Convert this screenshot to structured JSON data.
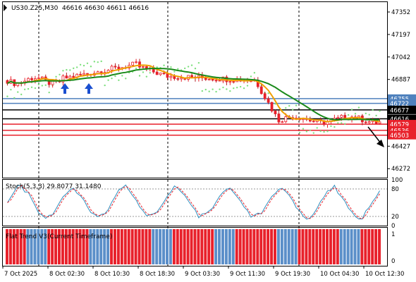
{
  "header": {
    "symbol_tf": "US30.Z25,M30",
    "ohlc": "46616 46630 46611 46616"
  },
  "price_axis": {
    "ticks": [
      "47352",
      "47197",
      "47042",
      "46887",
      "46427",
      "46272"
    ],
    "range": [
      46210,
      47420
    ]
  },
  "levels": [
    {
      "label": "46755",
      "value": 46755,
      "color": "#4f81bd"
    },
    {
      "label": "46722",
      "value": 46722,
      "color": "#4f81bd"
    },
    {
      "label": "46677",
      "value": 46677,
      "color": "#000000"
    },
    {
      "label": "46616",
      "value": 46616,
      "color": "#000000"
    },
    {
      "label": "46579",
      "value": 46579,
      "color": "#e8212b"
    },
    {
      "label": "46536",
      "value": 46536,
      "color": "#e8212b"
    },
    {
      "label": "46503",
      "value": 46503,
      "color": "#e8212b"
    }
  ],
  "stoch": {
    "label": "Stoch(5,3,3) 29.8077 31.1480",
    "ticks": [
      "100",
      "80",
      "20",
      "0"
    ]
  },
  "flat_trend": {
    "label": "Flat Trend V3(Current Timeframe)",
    "ticks": [
      "1",
      "0"
    ]
  },
  "time_axis": {
    "labels": [
      "7 Oct 2025",
      "8 Oct 02:30",
      "8 Oct 10:30",
      "8 Oct 18:30",
      "9 Oct 03:30",
      "9 Oct 11:30",
      "9 Oct 19:30",
      "10 Oct 04:30",
      "10 Oct 12:30"
    ]
  },
  "colors": {
    "bull": "#e8212b",
    "bear": "#e8212b",
    "ma_fast": "#f0a000",
    "ma_slow": "#1a8a1a",
    "parabolic": "#7fe07f",
    "stoch_main": "#2f8fbf",
    "stoch_signal": "#e8212b",
    "flat_up": "#e8212b",
    "flat_down": "#5b8fc9",
    "arrow": "#1a4fd0"
  }
}
